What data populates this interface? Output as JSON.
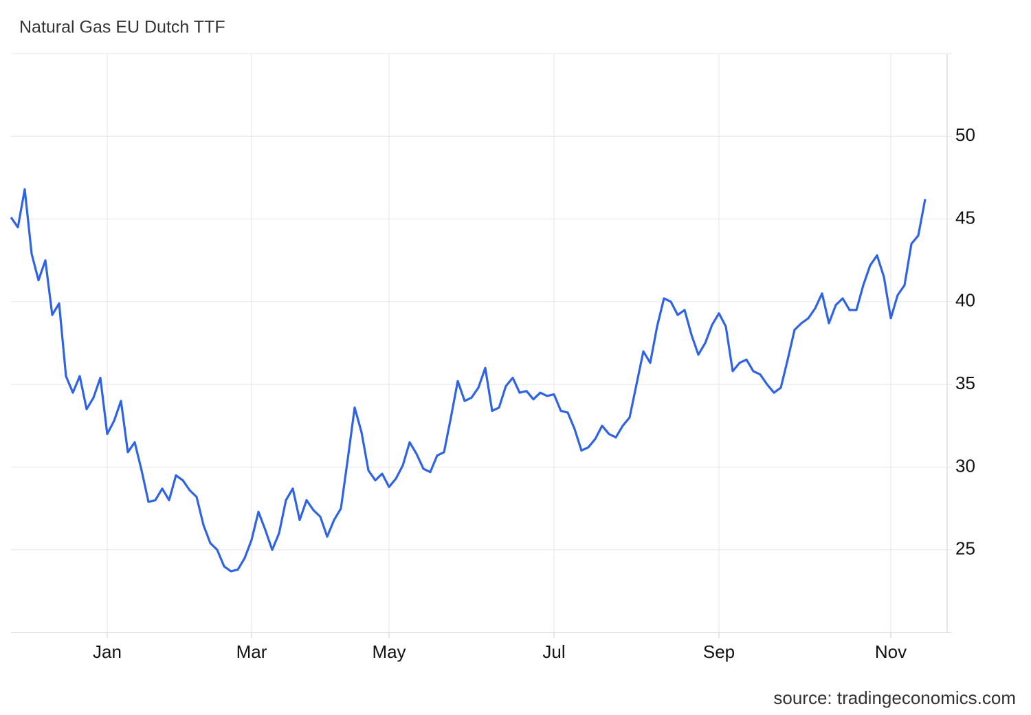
{
  "chart_data": {
    "type": "line",
    "title": "Natural Gas EU Dutch TTF",
    "source": "source: tradingeconomics.com",
    "categories": [
      null,
      null,
      null,
      null,
      null,
      null,
      null,
      null,
      null,
      null,
      null,
      null,
      null,
      null,
      "Jan",
      null,
      null,
      null,
      null,
      null,
      null,
      null,
      null,
      null,
      null,
      null,
      null,
      null,
      null,
      null,
      null,
      null,
      null,
      null,
      null,
      "Mar",
      null,
      null,
      null,
      null,
      null,
      null,
      null,
      null,
      null,
      null,
      null,
      null,
      null,
      null,
      null,
      null,
      null,
      null,
      null,
      "May",
      null,
      null,
      null,
      null,
      null,
      null,
      null,
      null,
      null,
      null,
      null,
      null,
      null,
      null,
      null,
      null,
      null,
      null,
      null,
      null,
      null,
      null,
      null,
      "Jul",
      null,
      null,
      null,
      null,
      null,
      null,
      null,
      null,
      null,
      null,
      null,
      null,
      null,
      null,
      null,
      null,
      null,
      null,
      null,
      null,
      null,
      null,
      null,
      "Sep",
      null,
      null,
      null,
      null,
      null,
      null,
      null,
      null,
      null,
      null,
      null,
      null,
      null,
      null,
      null,
      null,
      null,
      null,
      null,
      null,
      null,
      null,
      null,
      null,
      "Nov",
      null,
      null,
      null,
      null,
      null
    ],
    "series": [
      {
        "name": "Natural Gas EU Dutch TTF",
        "color": "#2f63e6",
        "values": [
          45.1,
          44.5,
          46.8,
          42.9,
          41.3,
          42.5,
          39.2,
          39.9,
          35.5,
          34.5,
          35.5,
          33.5,
          34.2,
          35.4,
          32.0,
          32.8,
          34.0,
          30.9,
          31.5,
          29.8,
          27.9,
          28.0,
          28.7,
          28.0,
          29.5,
          29.2,
          28.6,
          28.2,
          26.5,
          25.4,
          25.0,
          24.0,
          23.7,
          23.8,
          24.5,
          25.6,
          27.3,
          26.2,
          25.0,
          26.0,
          28.0,
          28.7,
          26.8,
          28.0,
          27.4,
          27.0,
          25.8,
          26.8,
          27.5,
          30.5,
          33.6,
          32.1,
          29.8,
          29.2,
          29.6,
          28.8,
          29.3,
          30.1,
          31.5,
          30.8,
          29.9,
          29.7,
          30.7,
          30.9,
          33.0,
          35.2,
          34.0,
          34.2,
          34.8,
          36.0,
          33.4,
          33.6,
          34.9,
          35.4,
          34.5,
          34.6,
          34.1,
          34.5,
          34.3,
          34.4,
          33.4,
          33.3,
          32.3,
          31.0,
          31.2,
          31.7,
          32.5,
          32.0,
          31.8,
          32.5,
          33.0,
          35.0,
          37.0,
          36.3,
          38.5,
          40.2,
          40.0,
          39.2,
          39.5,
          38.0,
          36.8,
          37.5,
          38.6,
          39.3,
          38.5,
          35.8,
          36.3,
          36.5,
          35.8,
          35.6,
          35.0,
          34.5,
          34.8,
          36.5,
          38.3,
          38.7,
          39.0,
          39.6,
          40.5,
          38.7,
          39.8,
          40.2,
          39.5,
          39.5,
          41.0,
          42.2,
          42.8,
          41.5,
          39.0,
          40.4,
          41.0,
          43.5,
          44.0,
          46.2
        ]
      }
    ],
    "ylim": [
      20,
      55
    ],
    "yticks": [
      25,
      30,
      35,
      40,
      45,
      50
    ],
    "grid": true
  }
}
